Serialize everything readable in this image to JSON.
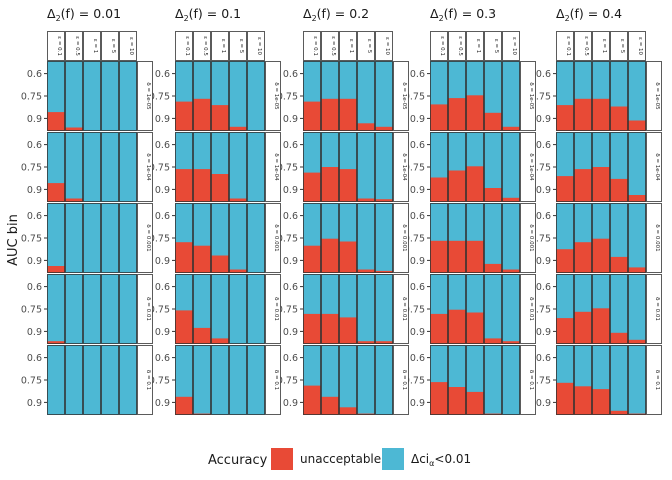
{
  "chart_data": {
    "type": "bar",
    "stacked": true,
    "y_label": "AUC bin",
    "y_ticks": [
      "0.6",
      "0.75",
      "0.9"
    ],
    "panel_titles": [
      "Δ2(f) = 0.01",
      "Δ2(f) = 0.1",
      "Δ2(f) = 0.2",
      "Δ2(f) = 0.3",
      "Δ2(f) = 0.4"
    ],
    "epsilon_labels": [
      "ε = 0.1",
      "ε = 0.5",
      "ε = 1",
      "ε = 5",
      "ε = 10"
    ],
    "delta_labels": [
      "δ = 1e-05",
      "δ = 1e-04",
      "δ = 0.001",
      "δ = 0.01",
      "δ = 0.1"
    ],
    "legend": {
      "title": "Accuracy",
      "items": [
        {
          "label": "unacceptable",
          "color": "#E84A36"
        },
        {
          "label": "Δci",
          "subscript": "α",
          "suffix": "<0.01",
          "color": "#4DB8D4"
        }
      ]
    },
    "colors": {
      "unacceptable": "#E84A36",
      "acceptable": "#4DB8D4"
    },
    "unacceptable_fraction": [
      [
        [
          0.27,
          0.05,
          0,
          0,
          0
        ],
        [
          0.27,
          0.05,
          0,
          0,
          0
        ],
        [
          0.1,
          0,
          0,
          0,
          0
        ],
        [
          0.04,
          0,
          0,
          0,
          0
        ],
        [
          0,
          0,
          0,
          0,
          0
        ]
      ],
      [
        [
          0.42,
          0.46,
          0.37,
          0.06,
          0
        ],
        [
          0.47,
          0.47,
          0.4,
          0.05,
          0
        ],
        [
          0.44,
          0.39,
          0.25,
          0.05,
          0
        ],
        [
          0.48,
          0.23,
          0.08,
          0,
          0
        ],
        [
          0.26,
          0.02,
          0,
          0,
          0
        ]
      ],
      [
        [
          0.42,
          0.46,
          0.46,
          0.11,
          0.06
        ],
        [
          0.42,
          0.5,
          0.47,
          0.05,
          0.04
        ],
        [
          0.39,
          0.49,
          0.45,
          0.05,
          0.03
        ],
        [
          0.43,
          0.43,
          0.38,
          0.04,
          0.04
        ],
        [
          0.42,
          0.26,
          0.11,
          0.02,
          0
        ]
      ],
      [
        [
          0.38,
          0.47,
          0.51,
          0.26,
          0.06
        ],
        [
          0.35,
          0.45,
          0.51,
          0.2,
          0.06
        ],
        [
          0.46,
          0.46,
          0.46,
          0.13,
          0.05
        ],
        [
          0.43,
          0.49,
          0.45,
          0.08,
          0.04
        ],
        [
          0.47,
          0.4,
          0.33,
          0.02,
          0
        ]
      ],
      [
        [
          0.37,
          0.46,
          0.46,
          0.35,
          0.15
        ],
        [
          0.37,
          0.47,
          0.5,
          0.33,
          0.1
        ],
        [
          0.34,
          0.44,
          0.49,
          0.23,
          0.08
        ],
        [
          0.37,
          0.46,
          0.51,
          0.16,
          0.06
        ],
        [
          0.46,
          0.41,
          0.37,
          0.06,
          0.02
        ]
      ]
    ]
  }
}
